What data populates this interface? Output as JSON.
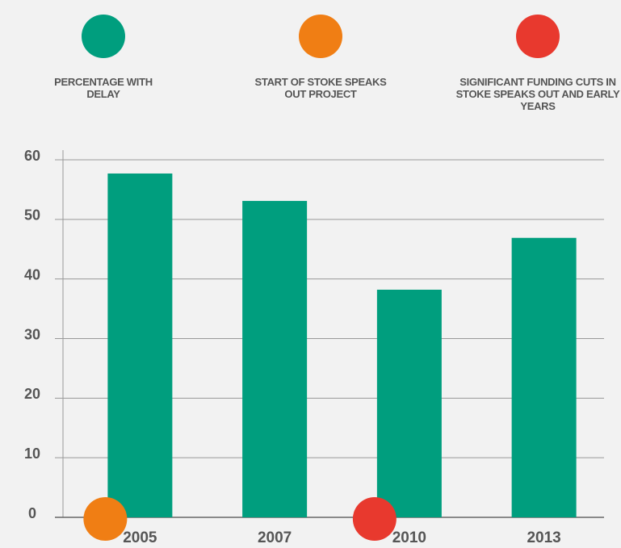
{
  "chart_data": {
    "type": "bar",
    "categories": [
      "2005",
      "2007",
      "2010",
      "2013"
    ],
    "series": [
      {
        "name": "PERCENTAGE WITH DELAY",
        "color": "#009e7e",
        "values": [
          57.7,
          53.1,
          38.2,
          46.9
        ]
      }
    ],
    "markers": [
      {
        "name": "START OF STOKE SPEAKS OUT PROJECT",
        "color": "#f07e14",
        "at": "2005"
      },
      {
        "name": "SIGNIFICANT FUNDING CUTS IN STOKE SPEAKS OUT AND EARLY YEARS",
        "color": "#e8392e",
        "at": "2010"
      }
    ],
    "ylim": [
      0,
      60
    ],
    "yticks": [
      0,
      10,
      20,
      30,
      40,
      50,
      60
    ],
    "grid": true
  }
}
